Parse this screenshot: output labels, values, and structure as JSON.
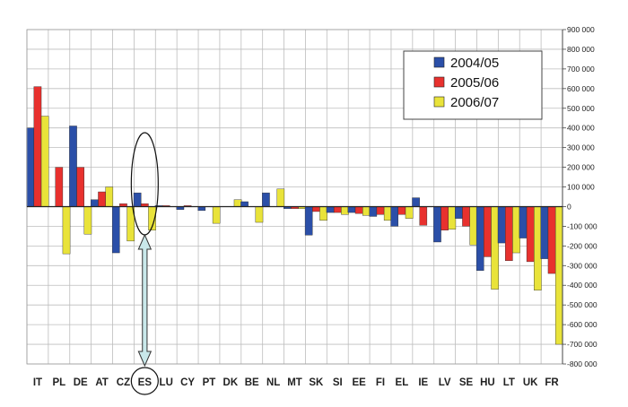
{
  "chart_data": {
    "type": "bar",
    "categories": [
      "IT",
      "PL",
      "DE",
      "AT",
      "CZ",
      "ES",
      "LU",
      "CY",
      "PT",
      "DK",
      "BE",
      "NL",
      "MT",
      "SK",
      "SI",
      "EE",
      "FI",
      "EL",
      "IE",
      "LV",
      "SE",
      "HU",
      "LT",
      "UK",
      "FR"
    ],
    "highlighted_category": "ES",
    "series": [
      {
        "name": "2004/05",
        "color": "#2b4fa8",
        "values": [
          400000,
          0,
          410000,
          35000,
          -235000,
          70000,
          5000,
          -15000,
          -20000,
          0,
          25000,
          70000,
          -10000,
          -145000,
          -30000,
          -30000,
          -50000,
          -100000,
          45000,
          -180000,
          -60000,
          -325000,
          -185000,
          -160000,
          -265000
        ]
      },
      {
        "name": "2005/06",
        "color": "#e8312e",
        "values": [
          610000,
          200000,
          200000,
          75000,
          15000,
          15000,
          5000,
          5000,
          0,
          0,
          0,
          0,
          -10000,
          -25000,
          -30000,
          -35000,
          -40000,
          -40000,
          -95000,
          -120000,
          -100000,
          -255000,
          -275000,
          -280000,
          -340000
        ]
      },
      {
        "name": "2006/07",
        "color": "#e9e33a",
        "values": [
          460000,
          -240000,
          -140000,
          100000,
          -175000,
          -120000,
          0,
          0,
          -85000,
          35000,
          -80000,
          90000,
          -10000,
          -70000,
          -40000,
          -45000,
          -70000,
          -60000,
          0,
          -115000,
          -195000,
          -420000,
          -235000,
          -425000,
          -700000
        ]
      }
    ],
    "yticks": [
      "900 000",
      "800 000",
      "700 000",
      "600 000",
      "500 000",
      "400 000",
      "300 000",
      "200 000",
      "100 000",
      "0",
      "-100 000",
      "-200 000",
      "-300 000",
      "-400 000",
      "-500 000",
      "-600 000",
      "-700 000",
      "-800 000"
    ],
    "ylim": [
      -800000,
      900000
    ],
    "ytick_step": 100000,
    "grid": true,
    "legend_position": "top-right",
    "title": "",
    "xlabel": "",
    "ylabel": ""
  }
}
